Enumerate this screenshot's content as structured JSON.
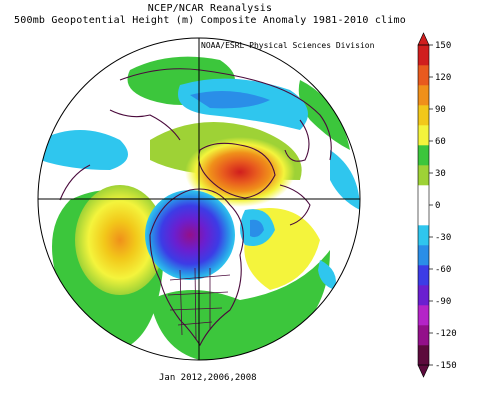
{
  "header": {
    "line1": "NCEP/NCAR Reanalysis",
    "line2": "500mb Geopotential Height (m) Composite Anomaly 1981-2010 climo"
  },
  "credit": "NOAA/ESRL Physical Sciences Division",
  "footer": "Jan 2012,2006,2008",
  "colorbar": {
    "ticks": [
      "150",
      "120",
      "90",
      "60",
      "30",
      "0",
      "-30",
      "-60",
      "-90",
      "-120",
      "-150"
    ],
    "colors": [
      "#5c0a3c",
      "#93108a",
      "#b424c8",
      "#6a1fd0",
      "#3c3ce6",
      "#2a8ee8",
      "#2fc6ee",
      "#ffffff",
      "#ffffff",
      "#9ed236",
      "#3cc63c",
      "#f4f43c",
      "#f2c81a",
      "#f0901a",
      "#e85a1e",
      "#d01e1e"
    ]
  },
  "map": {
    "projection": "north-polar-stereographic",
    "land_outline_color": "#4a0a3c",
    "circle_outline_color": "#000000"
  }
}
